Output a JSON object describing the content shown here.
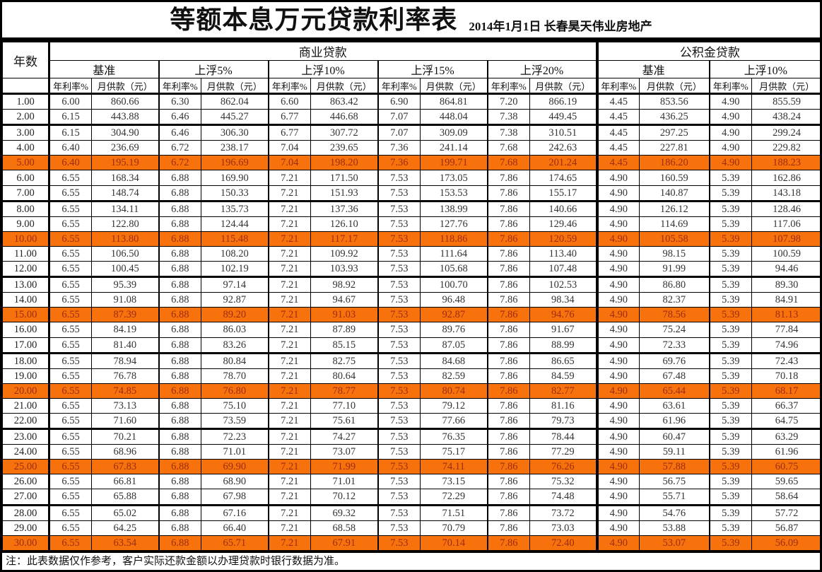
{
  "page": {
    "title": "等额本息万元贷款利率表",
    "subtitle": "2014年1月1日  长春昊天伟业房地产",
    "note": "注：此表数据仅作参考，客户实际还款金额以办理贷款时银行数据为准。"
  },
  "colors": {
    "highlight_bg": "#f7720c",
    "highlight_text": "#9c2c12"
  },
  "table": {
    "years_label": "年数",
    "sections": {
      "commercial": "商业贷款",
      "fund": "公积金贷款"
    },
    "commercial_groups": [
      "基准",
      "上浮5%",
      "上浮10%",
      "上浮15%",
      "上浮20%"
    ],
    "fund_groups": [
      "基准",
      "上浮10%"
    ],
    "rate_label": "年利率%",
    "payment_label": "月供款（元）",
    "rows": [
      {
        "years": "1.00",
        "highlight": false,
        "values": [
          "6.00",
          "860.66",
          "6.30",
          "862.04",
          "6.60",
          "863.42",
          "6.90",
          "864.81",
          "7.20",
          "866.19",
          "4.45",
          "853.56",
          "4.90",
          "855.59"
        ]
      },
      {
        "years": "2.00",
        "highlight": false,
        "values": [
          "6.15",
          "443.88",
          "6.46",
          "445.27",
          "6.77",
          "446.68",
          "7.07",
          "448.04",
          "7.38",
          "449.45",
          "4.45",
          "436.25",
          "4.90",
          "438.24"
        ]
      },
      {
        "years": "3.00",
        "highlight": false,
        "values": [
          "6.15",
          "304.90",
          "6.46",
          "306.30",
          "6.77",
          "307.72",
          "7.07",
          "309.09",
          "7.38",
          "310.51",
          "4.45",
          "297.25",
          "4.90",
          "299.24"
        ]
      },
      {
        "years": "4.00",
        "highlight": false,
        "values": [
          "6.40",
          "236.69",
          "6.72",
          "238.17",
          "7.04",
          "239.65",
          "7.36",
          "241.14",
          "7.68",
          "242.63",
          "4.45",
          "227.81",
          "4.90",
          "229.82"
        ]
      },
      {
        "years": "5.00",
        "highlight": true,
        "values": [
          "6.40",
          "195.19",
          "6.72",
          "196.69",
          "7.04",
          "198.20",
          "7.36",
          "199.71",
          "7.68",
          "201.24",
          "4.45",
          "186.20",
          "4.90",
          "188.23"
        ]
      },
      {
        "years": "6.00",
        "highlight": false,
        "values": [
          "6.55",
          "168.34",
          "6.88",
          "169.90",
          "7.21",
          "171.50",
          "7.53",
          "173.05",
          "7.86",
          "174.65",
          "4.90",
          "160.59",
          "5.39",
          "162.86"
        ]
      },
      {
        "years": "7.00",
        "highlight": false,
        "values": [
          "6.55",
          "148.74",
          "6.88",
          "150.33",
          "7.21",
          "151.93",
          "7.53",
          "153.53",
          "7.86",
          "155.17",
          "4.90",
          "140.87",
          "5.39",
          "143.18"
        ]
      },
      {
        "years": "8.00",
        "highlight": false,
        "values": [
          "6.55",
          "134.11",
          "6.88",
          "135.73",
          "7.21",
          "137.36",
          "7.53",
          "138.99",
          "7.86",
          "140.66",
          "4.90",
          "126.12",
          "5.39",
          "128.46"
        ]
      },
      {
        "years": "9.00",
        "highlight": false,
        "values": [
          "6.55",
          "122.80",
          "6.88",
          "124.44",
          "7.21",
          "126.10",
          "7.53",
          "127.76",
          "7.86",
          "129.46",
          "4.90",
          "114.69",
          "5.39",
          "117.06"
        ]
      },
      {
        "years": "10.00",
        "highlight": true,
        "values": [
          "6.55",
          "113.80",
          "6.88",
          "115.48",
          "7.21",
          "117.17",
          "7.53",
          "118.86",
          "7.86",
          "120.59",
          "4.90",
          "105.58",
          "5.39",
          "107.98"
        ]
      },
      {
        "years": "11.00",
        "highlight": false,
        "values": [
          "6.55",
          "106.50",
          "6.88",
          "108.20",
          "7.21",
          "109.92",
          "7.53",
          "111.64",
          "7.86",
          "113.40",
          "4.90",
          "98.15",
          "5.39",
          "100.59"
        ]
      },
      {
        "years": "12.00",
        "highlight": false,
        "values": [
          "6.55",
          "100.45",
          "6.88",
          "102.19",
          "7.21",
          "103.93",
          "7.53",
          "105.68",
          "7.86",
          "107.48",
          "4.90",
          "91.99",
          "5.39",
          "94.46"
        ]
      },
      {
        "years": "13.00",
        "highlight": false,
        "values": [
          "6.55",
          "95.39",
          "6.88",
          "97.14",
          "7.21",
          "98.92",
          "7.53",
          "100.70",
          "7.86",
          "102.53",
          "4.90",
          "86.80",
          "5.39",
          "89.30"
        ]
      },
      {
        "years": "14.00",
        "highlight": false,
        "values": [
          "6.55",
          "91.08",
          "6.88",
          "92.87",
          "7.21",
          "94.67",
          "7.53",
          "96.48",
          "7.86",
          "98.34",
          "4.90",
          "82.37",
          "5.39",
          "84.91"
        ]
      },
      {
        "years": "15.00",
        "highlight": true,
        "values": [
          "6.55",
          "87.39",
          "6.88",
          "89.20",
          "7.21",
          "91.03",
          "7.53",
          "92.87",
          "7.86",
          "94.76",
          "4.90",
          "78.56",
          "5.39",
          "81.13"
        ]
      },
      {
        "years": "16.00",
        "highlight": false,
        "values": [
          "6.55",
          "84.19",
          "6.88",
          "86.03",
          "7.21",
          "87.89",
          "7.53",
          "89.76",
          "7.86",
          "91.67",
          "4.90",
          "75.24",
          "5.39",
          "77.84"
        ]
      },
      {
        "years": "17.00",
        "highlight": false,
        "values": [
          "6.55",
          "81.40",
          "6.88",
          "83.26",
          "7.21",
          "85.15",
          "7.53",
          "87.05",
          "7.86",
          "88.99",
          "4.90",
          "72.33",
          "5.39",
          "74.96"
        ]
      },
      {
        "years": "18.00",
        "highlight": false,
        "values": [
          "6.55",
          "78.94",
          "6.88",
          "80.84",
          "7.21",
          "82.75",
          "7.53",
          "84.68",
          "7.86",
          "86.65",
          "4.90",
          "69.76",
          "5.39",
          "72.43"
        ]
      },
      {
        "years": "19.00",
        "highlight": false,
        "values": [
          "6.55",
          "76.78",
          "6.88",
          "78.70",
          "7.21",
          "80.64",
          "7.53",
          "82.59",
          "7.86",
          "84.59",
          "4.90",
          "67.48",
          "5.39",
          "70.18"
        ]
      },
      {
        "years": "20.00",
        "highlight": true,
        "values": [
          "6.55",
          "74.85",
          "6.88",
          "76.80",
          "7.21",
          "78.77",
          "7.53",
          "80.74",
          "7.86",
          "82.77",
          "4.90",
          "65.44",
          "5.39",
          "68.17"
        ]
      },
      {
        "years": "21.00",
        "highlight": false,
        "values": [
          "6.55",
          "73.13",
          "6.88",
          "75.10",
          "7.21",
          "77.10",
          "7.53",
          "79.12",
          "7.86",
          "81.16",
          "4.90",
          "63.61",
          "5.39",
          "66.37"
        ]
      },
      {
        "years": "22.00",
        "highlight": false,
        "values": [
          "6.55",
          "71.60",
          "6.88",
          "73.59",
          "7.21",
          "75.61",
          "7.53",
          "77.66",
          "7.86",
          "79.73",
          "4.90",
          "61.96",
          "5.39",
          "64.75"
        ]
      },
      {
        "years": "23.00",
        "highlight": false,
        "values": [
          "6.55",
          "70.21",
          "6.88",
          "72.23",
          "7.21",
          "74.27",
          "7.53",
          "76.35",
          "7.86",
          "78.44",
          "4.90",
          "60.47",
          "5.39",
          "63.29"
        ]
      },
      {
        "years": "24.00",
        "highlight": false,
        "values": [
          "6.55",
          "68.96",
          "6.88",
          "71.01",
          "7.21",
          "73.07",
          "7.53",
          "75.17",
          "7.86",
          "77.29",
          "4.90",
          "59.11",
          "5.39",
          "61.96"
        ]
      },
      {
        "years": "25.00",
        "highlight": true,
        "values": [
          "6.55",
          "67.83",
          "6.88",
          "69.90",
          "7.21",
          "71.99",
          "7.53",
          "74.11",
          "7.86",
          "76.26",
          "4.90",
          "57.88",
          "5.39",
          "60.75"
        ]
      },
      {
        "years": "26.00",
        "highlight": false,
        "values": [
          "6.55",
          "66.81",
          "6.88",
          "68.90",
          "7.21",
          "71.01",
          "7.53",
          "73.15",
          "7.86",
          "75.32",
          "4.90",
          "56.75",
          "5.39",
          "59.65"
        ]
      },
      {
        "years": "27.00",
        "highlight": false,
        "values": [
          "6.55",
          "65.88",
          "6.88",
          "67.98",
          "7.21",
          "70.12",
          "7.53",
          "72.29",
          "7.86",
          "74.48",
          "4.90",
          "55.71",
          "5.39",
          "58.64"
        ]
      },
      {
        "years": "28.00",
        "highlight": false,
        "values": [
          "6.55",
          "65.02",
          "6.88",
          "67.16",
          "7.21",
          "69.32",
          "7.53",
          "71.51",
          "7.86",
          "73.72",
          "4.90",
          "54.76",
          "5.39",
          "57.72"
        ]
      },
      {
        "years": "29.00",
        "highlight": false,
        "values": [
          "6.55",
          "64.25",
          "6.88",
          "66.40",
          "7.21",
          "68.58",
          "7.53",
          "70.79",
          "7.86",
          "73.03",
          "4.90",
          "53.88",
          "5.39",
          "56.87"
        ]
      },
      {
        "years": "30.00",
        "highlight": true,
        "values": [
          "6.55",
          "63.54",
          "6.88",
          "65.71",
          "7.21",
          "67.91",
          "7.53",
          "70.14",
          "7.86",
          "72.40",
          "4.90",
          "53.07",
          "5.39",
          "56.09"
        ]
      }
    ]
  }
}
